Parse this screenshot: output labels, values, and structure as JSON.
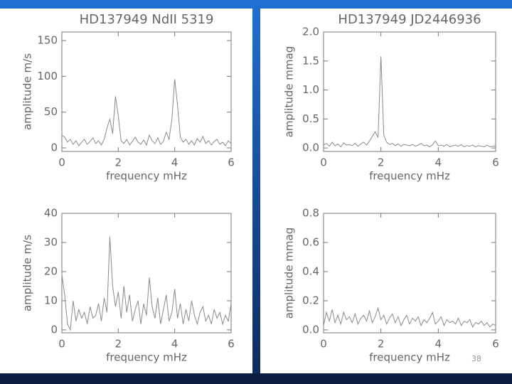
{
  "slide_number": "38",
  "chart_data": [
    {
      "type": "line",
      "title": "HD137949 NdII 5319",
      "xlabel": "frequency mHz",
      "ylabel": "amplitude m/s",
      "color": "#8a8a8a",
      "xlim": [
        0,
        6
      ],
      "xticks": [
        0,
        2,
        4,
        6
      ],
      "ylim": [
        -5,
        162
      ],
      "yticks": [
        0,
        50,
        100,
        150
      ],
      "x": [
        0,
        0.1,
        0.2,
        0.3,
        0.4,
        0.5,
        0.6,
        0.7,
        0.8,
        0.9,
        1,
        1.1,
        1.2,
        1.3,
        1.4,
        1.5,
        1.6,
        1.7,
        1.8,
        1.9,
        2,
        2.1,
        2.2,
        2.3,
        2.4,
        2.5,
        2.6,
        2.7,
        2.8,
        2.9,
        3,
        3.1,
        3.2,
        3.3,
        3.4,
        3.5,
        3.6,
        3.7,
        3.8,
        3.9,
        4,
        4.1,
        4.2,
        4.3,
        4.4,
        4.5,
        4.6,
        4.7,
        4.8,
        4.9,
        5,
        5.1,
        5.2,
        5.3,
        5.4,
        5.5,
        5.6,
        5.7,
        5.8,
        5.9,
        6
      ],
      "values": [
        18,
        15,
        8,
        12,
        5,
        10,
        3,
        8,
        12,
        5,
        9,
        14,
        6,
        10,
        4,
        12,
        28,
        40,
        20,
        72,
        45,
        10,
        6,
        12,
        4,
        9,
        15,
        8,
        5,
        11,
        4,
        18,
        10,
        6,
        14,
        5,
        9,
        22,
        12,
        40,
        96,
        60,
        15,
        8,
        12,
        5,
        10,
        4,
        13,
        8,
        16,
        6,
        10,
        4,
        9,
        12,
        5,
        8,
        3,
        10,
        6
      ]
    },
    {
      "type": "line",
      "title": "HD137949 JD2446936",
      "xlabel": "frequency mHz",
      "ylabel": "amplitude mmag",
      "color": "#8a8a8a",
      "xlim": [
        0,
        6
      ],
      "xticks": [
        0,
        2,
        4,
        6
      ],
      "ylim": [
        -0.06,
        2.0
      ],
      "yticks": [
        {
          "value": 0,
          "label": "0.0"
        },
        0.5,
        {
          "value": 1,
          "label": "1.0"
        },
        1.5,
        {
          "value": 2,
          "label": "2.0"
        }
      ],
      "x": [
        0,
        0.1,
        0.2,
        0.3,
        0.4,
        0.5,
        0.6,
        0.7,
        0.8,
        0.9,
        1,
        1.1,
        1.2,
        1.3,
        1.4,
        1.5,
        1.6,
        1.7,
        1.8,
        1.9,
        2,
        2.1,
        2.2,
        2.3,
        2.4,
        2.5,
        2.6,
        2.7,
        2.8,
        2.9,
        3,
        3.1,
        3.2,
        3.3,
        3.4,
        3.5,
        3.6,
        3.7,
        3.8,
        3.9,
        4,
        4.1,
        4.2,
        4.3,
        4.4,
        4.5,
        4.6,
        4.7,
        4.8,
        4.9,
        5,
        5.1,
        5.2,
        5.3,
        5.4,
        5.5,
        5.6,
        5.7,
        5.8,
        5.9,
        6
      ],
      "values": [
        0.05,
        0.08,
        0.03,
        0.1,
        0.04,
        0.07,
        0.02,
        0.09,
        0.05,
        0.06,
        0.04,
        0.08,
        0.03,
        0.07,
        0.1,
        0.05,
        0.12,
        0.2,
        0.28,
        0.18,
        1.58,
        0.22,
        0.1,
        0.06,
        0.08,
        0.04,
        0.07,
        0.03,
        0.06,
        0.05,
        0.04,
        0.06,
        0.03,
        0.05,
        0.08,
        0.04,
        0.05,
        0.02,
        0.06,
        0.12,
        0.04,
        0.05,
        0.03,
        0.06,
        0.02,
        0.04,
        0.05,
        0.03,
        0.06,
        0.02,
        0.04,
        0.03,
        0.05,
        0.02,
        0.04,
        0.03,
        0.02,
        0.05,
        0.02,
        0.03,
        0.04
      ]
    },
    {
      "type": "line",
      "xlabel": "frequency mHz",
      "ylabel": "amplitude m/s",
      "color": "#8a8a8a",
      "xlim": [
        0,
        6
      ],
      "xticks": [
        0,
        2,
        4,
        6
      ],
      "ylim": [
        -1,
        40
      ],
      "yticks": [
        0,
        10,
        20,
        30,
        40
      ],
      "x": [
        0,
        0.1,
        0.2,
        0.3,
        0.4,
        0.5,
        0.6,
        0.7,
        0.8,
        0.9,
        1,
        1.1,
        1.2,
        1.3,
        1.4,
        1.5,
        1.6,
        1.7,
        1.8,
        1.9,
        2,
        2.1,
        2.2,
        2.3,
        2.4,
        2.5,
        2.6,
        2.7,
        2.8,
        2.9,
        3,
        3.1,
        3.2,
        3.3,
        3.4,
        3.5,
        3.6,
        3.7,
        3.8,
        3.9,
        4,
        4.1,
        4.2,
        4.3,
        4.4,
        4.5,
        4.6,
        4.7,
        4.8,
        4.9,
        5,
        5.1,
        5.2,
        5.3,
        5.4,
        5.5,
        5.6,
        5.7,
        5.8,
        5.9,
        6
      ],
      "values": [
        19,
        12,
        2,
        0,
        10,
        3,
        7,
        4,
        6,
        2,
        8,
        4,
        5,
        9,
        3,
        11,
        6,
        32,
        15,
        8,
        13,
        4,
        15,
        6,
        12,
        3,
        7,
        10,
        2,
        9,
        5,
        18,
        8,
        4,
        11,
        2,
        7,
        12,
        3,
        6,
        14,
        4,
        9,
        2,
        7,
        3,
        10,
        5,
        2,
        6,
        8,
        3,
        5,
        2,
        7,
        4,
        6,
        2,
        5,
        3,
        9
      ]
    },
    {
      "type": "line",
      "xlabel": "frequency mHz",
      "ylabel": "amplitude mmag",
      "color": "#8a8a8a",
      "xlim": [
        0,
        6
      ],
      "xticks": [
        0,
        2,
        4,
        6
      ],
      "ylim": [
        -0.02,
        0.8
      ],
      "yticks": [
        {
          "value": 0,
          "label": "0.0"
        },
        0.2,
        0.4,
        0.6,
        0.8
      ],
      "x": [
        0,
        0.1,
        0.2,
        0.3,
        0.4,
        0.5,
        0.6,
        0.7,
        0.8,
        0.9,
        1,
        1.1,
        1.2,
        1.3,
        1.4,
        1.5,
        1.6,
        1.7,
        1.8,
        1.9,
        2,
        2.1,
        2.2,
        2.3,
        2.4,
        2.5,
        2.6,
        2.7,
        2.8,
        2.9,
        3,
        3.1,
        3.2,
        3.3,
        3.4,
        3.5,
        3.6,
        3.7,
        3.8,
        3.9,
        4,
        4.1,
        4.2,
        4.3,
        4.4,
        4.5,
        4.6,
        4.7,
        4.8,
        4.9,
        5,
        5.1,
        5.2,
        5.3,
        5.4,
        5.5,
        5.6,
        5.7,
        5.8,
        5.9,
        6
      ],
      "values": [
        0.03,
        0.12,
        0.06,
        0.14,
        0.05,
        0.1,
        0.04,
        0.12,
        0.07,
        0.09,
        0.05,
        0.11,
        0.04,
        0.08,
        0.1,
        0.06,
        0.13,
        0.05,
        0.09,
        0.15,
        0.07,
        0.1,
        0.04,
        0.08,
        0.11,
        0.05,
        0.09,
        0.03,
        0.07,
        0.1,
        0.04,
        0.08,
        0.06,
        0.09,
        0.03,
        0.07,
        0.05,
        0.08,
        0.12,
        0.04,
        0.06,
        0.09,
        0.03,
        0.07,
        0.05,
        0.06,
        0.04,
        0.08,
        0.03,
        0.06,
        0.05,
        0.07,
        0.02,
        0.05,
        0.04,
        0.06,
        0.03,
        0.05,
        0.02,
        0.04,
        0.03
      ]
    }
  ]
}
